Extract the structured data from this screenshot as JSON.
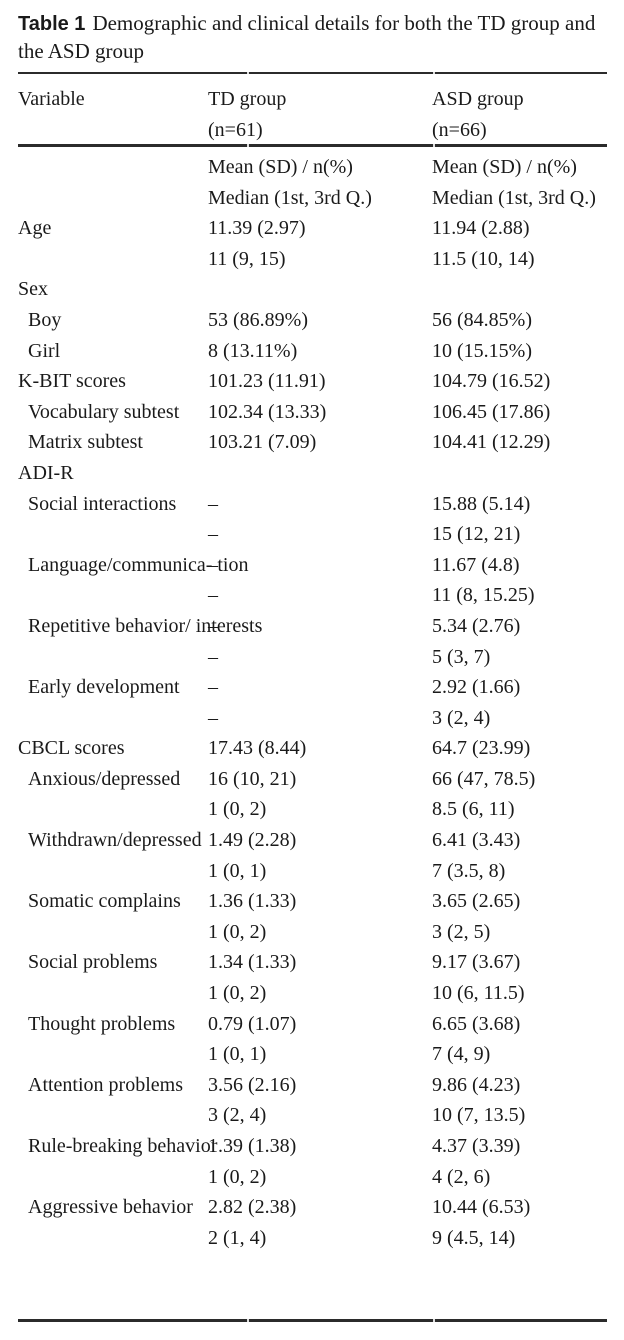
{
  "colors": {
    "background": "#ffffff",
    "text": "#1a1a1a",
    "rule": "#2b2b2b"
  },
  "title": {
    "label": "Table 1",
    "text": "Demographic and clinical details for both the TD group and\nthe ASD group"
  },
  "header": {
    "variable": "Variable",
    "td_group": {
      "name": "TD group",
      "n": "(n=61)"
    },
    "asd_group": {
      "name": "ASD group",
      "n": "(n=66)"
    }
  },
  "rows": [
    {
      "label": "",
      "indent": 0,
      "td": "Mean (SD) / n(%)",
      "asd": "Mean (SD) / n(%)"
    },
    {
      "label": "",
      "indent": 0,
      "td": "Median (1st, 3rd Q.)",
      "asd": "Median (1st, 3rd Q.)"
    },
    {
      "label": "Age",
      "indent": 0,
      "td": "11.39 (2.97)",
      "asd": "11.94 (2.88)"
    },
    {
      "label": "",
      "indent": 0,
      "td": "11 (9, 15)",
      "asd": "11.5 (10, 14)"
    },
    {
      "label": "Sex",
      "indent": 0,
      "td": "",
      "asd": ""
    },
    {
      "label": "Boy",
      "indent": 1,
      "td": "53 (86.89%)",
      "asd": "56 (84.85%)"
    },
    {
      "label": "Girl",
      "indent": 1,
      "td": "8 (13.11%)",
      "asd": "10 (15.15%)"
    },
    {
      "label": "K-BIT scores",
      "indent": 0,
      "td": "101.23 (11.91)",
      "asd": "104.79 (16.52)"
    },
    {
      "label": "Vocabulary subtest",
      "indent": 1,
      "td": "102.34 (13.33)",
      "asd": "106.45 (17.86)"
    },
    {
      "label": "Matrix subtest",
      "indent": 1,
      "td": "103.21 (7.09)",
      "asd": "104.41 (12.29)"
    },
    {
      "label": "ADI-R",
      "indent": 0,
      "td": "",
      "asd": ""
    },
    {
      "label": "Social interactions",
      "indent": 1,
      "td": "–",
      "asd": "15.88 (5.14)"
    },
    {
      "label": "",
      "indent": 1,
      "td": "–",
      "asd": "15 (12, 21)"
    },
    {
      "label": "Language/communica-\ntion",
      "indent": 1,
      "td": "–",
      "asd": "11.67 (4.8)"
    },
    {
      "label": "",
      "indent": 1,
      "td": "–",
      "asd": "11 (8, 15.25)"
    },
    {
      "label": "Repetitive behavior/\ninterests",
      "indent": 1,
      "td": "–",
      "asd": "5.34 (2.76)"
    },
    {
      "label": "",
      "indent": 1,
      "td": "–",
      "asd": "5 (3, 7)"
    },
    {
      "label": "Early development",
      "indent": 1,
      "td": "–",
      "asd": "2.92 (1.66)"
    },
    {
      "label": "",
      "indent": 1,
      "td": "–",
      "asd": "3 (2, 4)"
    },
    {
      "label": "CBCL scores",
      "indent": 0,
      "td": "17.43 (8.44)",
      "asd": "64.7 (23.99)"
    },
    {
      "label": "Anxious/depressed",
      "indent": 1,
      "td": "16 (10, 21)",
      "asd": "66 (47, 78.5)"
    },
    {
      "label": "",
      "indent": 1,
      "td": "1 (0, 2)",
      "asd": "8.5 (6, 11)"
    },
    {
      "label": "Withdrawn/depressed",
      "indent": 1,
      "td": "1.49 (2.28)",
      "asd": "6.41 (3.43)"
    },
    {
      "label": "",
      "indent": 1,
      "td": "1 (0, 1)",
      "asd": "7 (3.5, 8)"
    },
    {
      "label": "Somatic complains",
      "indent": 1,
      "td": "1.36 (1.33)",
      "asd": "3.65 (2.65)"
    },
    {
      "label": "",
      "indent": 1,
      "td": "1 (0, 2)",
      "asd": "3 (2, 5)"
    },
    {
      "label": "Social problems",
      "indent": 1,
      "td": "1.34 (1.33)",
      "asd": "9.17 (3.67)"
    },
    {
      "label": "",
      "indent": 1,
      "td": "1 (0, 2)",
      "asd": "10 (6, 11.5)"
    },
    {
      "label": "Thought problems",
      "indent": 1,
      "td": "0.79 (1.07)",
      "asd": "6.65 (3.68)"
    },
    {
      "label": "",
      "indent": 1,
      "td": "1 (0, 1)",
      "asd": "7 (4, 9)"
    },
    {
      "label": "Attention problems",
      "indent": 1,
      "td": "3.56 (2.16)",
      "asd": "9.86 (4.23)"
    },
    {
      "label": "",
      "indent": 1,
      "td": "3 (2, 4)",
      "asd": "10 (7, 13.5)"
    },
    {
      "label": "Rule-breaking behavior",
      "indent": 1,
      "td": "1.39 (1.38)",
      "asd": "4.37 (3.39)"
    },
    {
      "label": "",
      "indent": 1,
      "td": "1 (0, 2)",
      "asd": "4 (2, 6)"
    },
    {
      "label": "Aggressive behavior",
      "indent": 1,
      "td": "2.82 (2.38)",
      "asd": "10.44 (6.53)"
    },
    {
      "label": "",
      "indent": 1,
      "td": "2 (1, 4)",
      "asd": "9 (4.5, 14)"
    }
  ]
}
